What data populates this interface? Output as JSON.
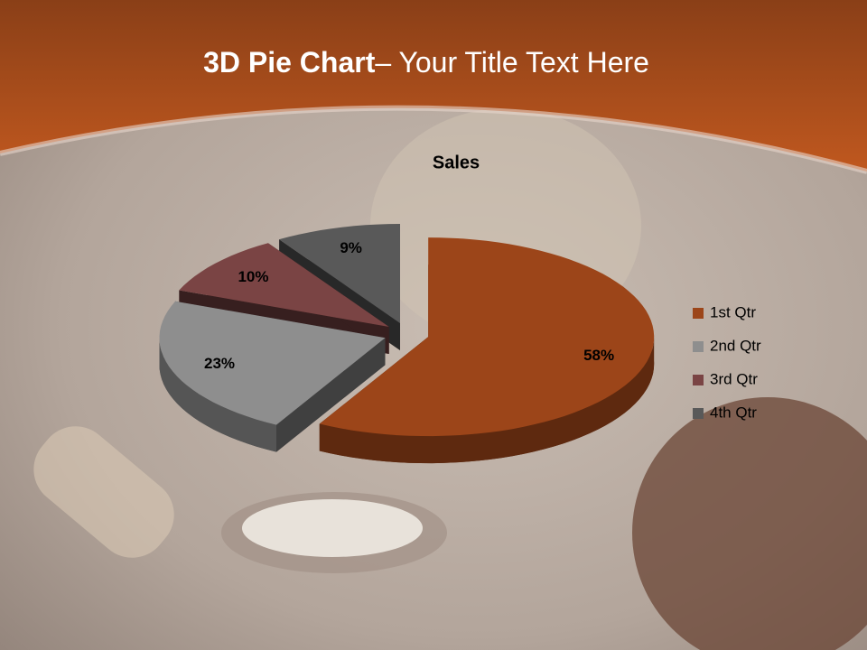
{
  "slide": {
    "title_bold": "3D Pie Chart",
    "title_rest": "– Your Title Text Here"
  },
  "chart_data": {
    "type": "pie3d",
    "title": "Sales",
    "categories": [
      "1st Qtr",
      "2nd Qtr",
      "3rd Qtr",
      "4th Qtr"
    ],
    "values": [
      58,
      23,
      10,
      9
    ],
    "value_labels": [
      "58%",
      "23%",
      "10%",
      "9%"
    ],
    "colors": [
      "#9c4519",
      "#8e8e8e",
      "#7a4444",
      "#595959"
    ],
    "legend": "right"
  }
}
